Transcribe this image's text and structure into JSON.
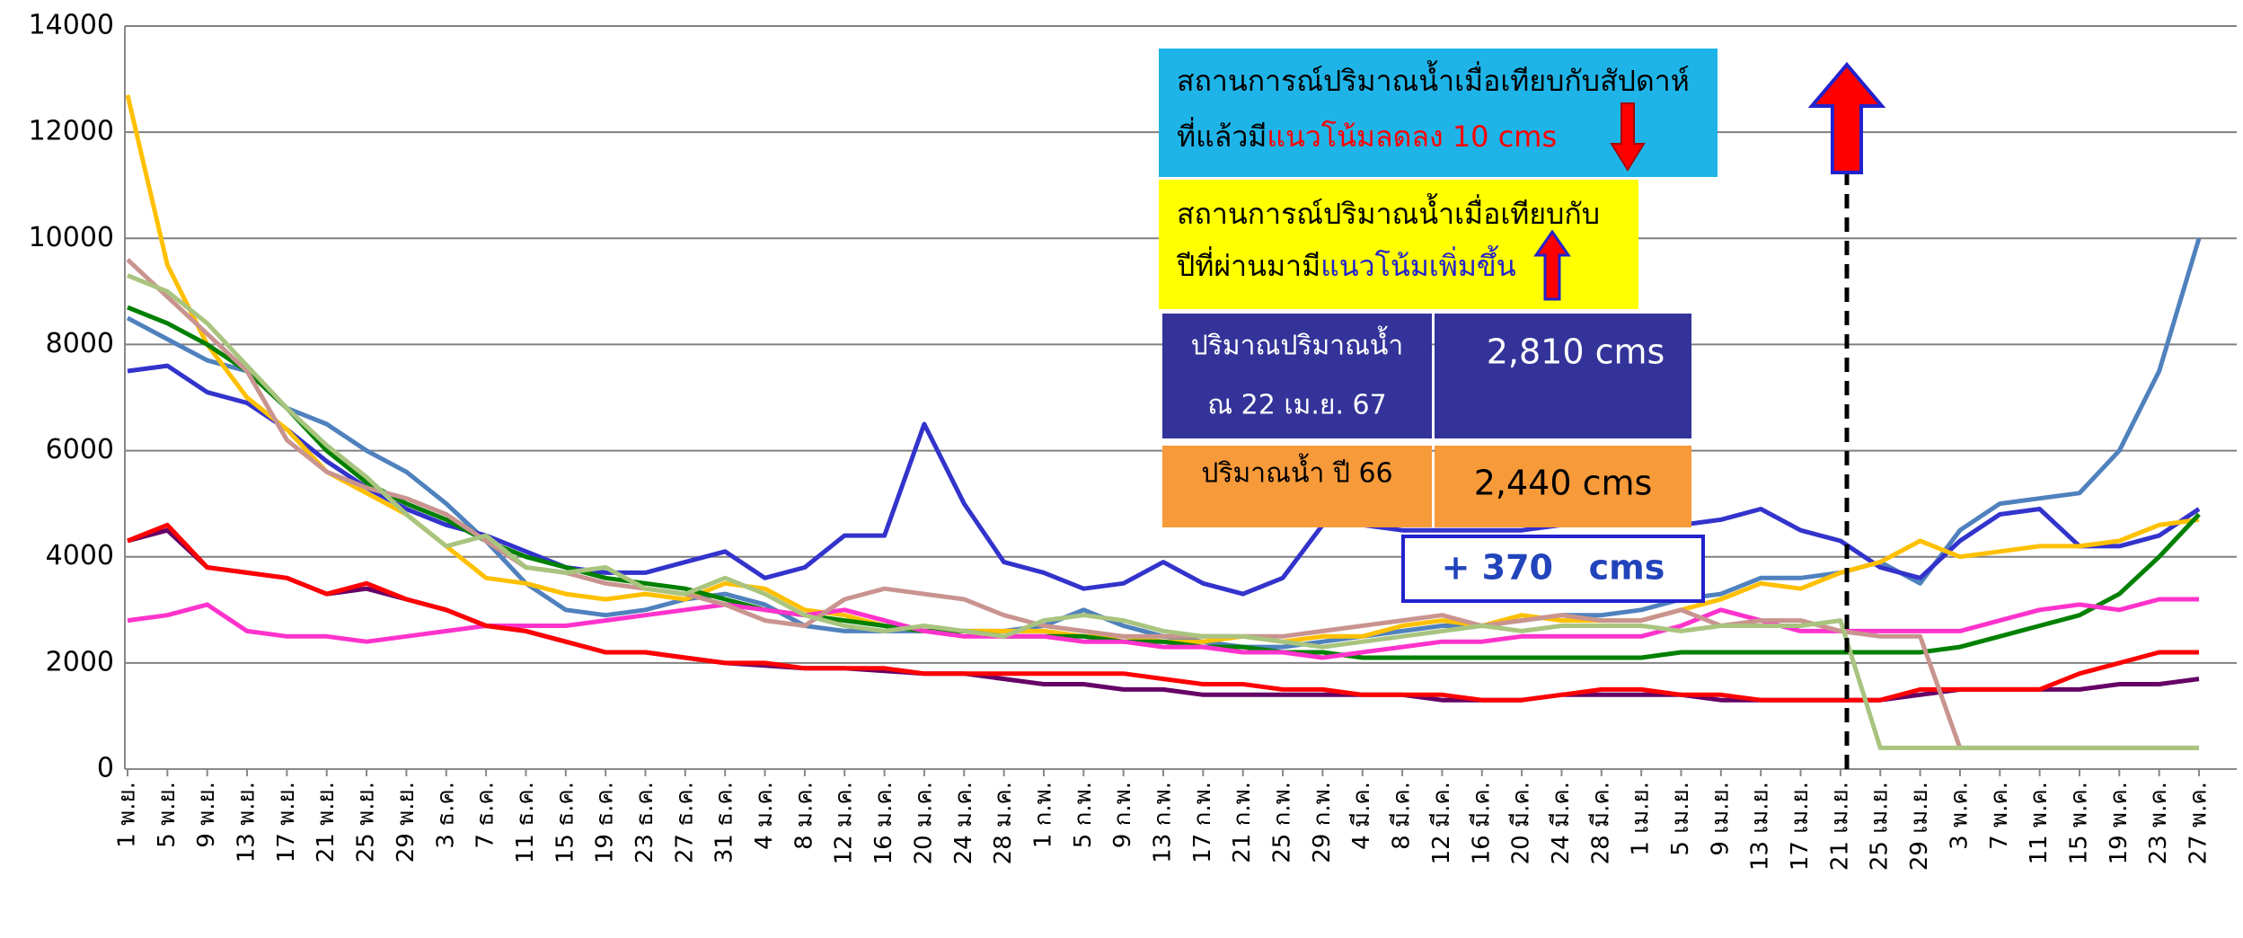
{
  "chart_data": {
    "type": "line",
    "categories": [
      "1 พ.ย.",
      "5 พ.ย.",
      "9 พ.ย.",
      "13 พ.ย.",
      "17 พ.ย.",
      "21 พ.ย.",
      "25 พ.ย.",
      "29 พ.ย.",
      "3 ธ.ค.",
      "7 ธ.ค.",
      "11 ธ.ค.",
      "15 ธ.ค.",
      "19 ธ.ค.",
      "23 ธ.ค.",
      "27 ธ.ค.",
      "31 ธ.ค.",
      "4 ม.ค.",
      "8 ม.ค.",
      "12 ม.ค.",
      "16 ม.ค.",
      "20 ม.ค.",
      "24 ม.ค.",
      "28 ม.ค.",
      "1 ก.พ.",
      "5 ก.พ.",
      "9 ก.พ.",
      "13 ก.พ.",
      "17 ก.พ.",
      "21 ก.พ.",
      "25 ก.พ.",
      "29 ก.พ.",
      "4 มี.ค.",
      "8 มี.ค.",
      "12 มี.ค.",
      "16 มี.ค.",
      "20 มี.ค.",
      "24 มี.ค.",
      "28 มี.ค.",
      "1 เม.ย.",
      "5 เม.ย.",
      "9 เม.ย.",
      "13 เม.ย.",
      "17 เม.ย.",
      "21 เม.ย.",
      "25 เม.ย.",
      "29 เม.ย.",
      "3 พ.ค.",
      "7 พ.ค.",
      "11 พ.ค.",
      "15 พ.ค.",
      "19 พ.ค.",
      "23 พ.ค.",
      "27 พ.ค."
    ],
    "series": [
      {
        "color": "#4f81bd",
        "values": [
          8500,
          8100,
          7700,
          7500,
          6800,
          6500,
          6000,
          5600,
          5000,
          4300,
          3500,
          3000,
          2900,
          3000,
          3200,
          3300,
          3100,
          2700,
          2600,
          2600,
          2600,
          2600,
          2600,
          2700,
          3000,
          2700,
          2500,
          2400,
          2300,
          2300,
          2400,
          2500,
          2600,
          2700,
          2700,
          2800,
          2900,
          2900,
          3000,
          3200,
          3300,
          3600,
          3600,
          3700,
          3900,
          3500,
          4500,
          5000,
          5100,
          5200,
          6000,
          7500,
          10000
        ]
      },
      {
        "color": "#3333cc",
        "values": [
          7500,
          7600,
          7100,
          6900,
          6400,
          5800,
          5300,
          4900,
          4600,
          4400,
          4100,
          3800,
          3700,
          3700,
          3900,
          4100,
          3600,
          3800,
          4400,
          4400,
          6500,
          5000,
          3900,
          3700,
          3400,
          3500,
          3900,
          3500,
          3300,
          3600,
          4600,
          4600,
          4500,
          4500,
          4500,
          4500,
          4600,
          4600,
          4600,
          4600,
          4700,
          4900,
          4500,
          4300,
          3800,
          3600,
          4300,
          4800,
          4900,
          4200,
          4200,
          4400,
          4900
        ]
      },
      {
        "color": "#ffc000",
        "values": [
          12700,
          9500,
          8000,
          7000,
          6400,
          5600,
          5200,
          4800,
          4200,
          3600,
          3500,
          3300,
          3200,
          3300,
          3200,
          3500,
          3400,
          3000,
          2900,
          2700,
          2600,
          2600,
          2600,
          2600,
          2500,
          2500,
          2400,
          2400,
          2500,
          2400,
          2500,
          2500,
          2700,
          2800,
          2700,
          2900,
          2800,
          2800,
          2800,
          3000,
          3200,
          3500,
          3400,
          3700,
          3900,
          4300,
          4000,
          4100,
          4200,
          4200,
          4300,
          4600,
          4700
        ]
      },
      {
        "color": "#008000",
        "values": [
          8700,
          8400,
          8000,
          7500,
          6800,
          6000,
          5400,
          5000,
          4700,
          4300,
          4000,
          3800,
          3600,
          3500,
          3400,
          3200,
          3000,
          2900,
          2800,
          2700,
          2600,
          2600,
          2500,
          2500,
          2500,
          2400,
          2400,
          2300,
          2300,
          2200,
          2200,
          2100,
          2100,
          2100,
          2100,
          2100,
          2100,
          2100,
          2100,
          2200,
          2200,
          2200,
          2200,
          2200,
          2200,
          2200,
          2300,
          2500,
          2700,
          2900,
          3300,
          4000,
          4800
        ]
      },
      {
        "color": "#ff33cc",
        "values": [
          2800,
          2900,
          3100,
          2600,
          2500,
          2500,
          2400,
          2500,
          2600,
          2700,
          2700,
          2700,
          2800,
          2900,
          3000,
          3100,
          3000,
          2900,
          3000,
          2800,
          2600,
          2500,
          2500,
          2500,
          2400,
          2400,
          2300,
          2300,
          2200,
          2200,
          2100,
          2200,
          2300,
          2400,
          2400,
          2500,
          2500,
          2500,
          2500,
          2700,
          3000,
          2800,
          2600,
          2600,
          2600,
          2600,
          2600,
          2800,
          3000,
          3100,
          3000,
          3200,
          3200
        ]
      },
      {
        "color": "#660066",
        "values": [
          4300,
          4500,
          3800,
          3700,
          3600,
          3300,
          3400,
          3200,
          3000,
          2700,
          2600,
          2400,
          2200,
          2200,
          2100,
          2000,
          1950,
          1900,
          1900,
          1850,
          1800,
          1800,
          1700,
          1600,
          1600,
          1500,
          1500,
          1400,
          1400,
          1400,
          1400,
          1400,
          1400,
          1300,
          1300,
          1300,
          1400,
          1400,
          1400,
          1400,
          1300,
          1300,
          1300,
          1300,
          1300,
          1400,
          1500,
          1500,
          1500,
          1500,
          1600,
          1600,
          1700
        ]
      },
      {
        "color": "#ff0000",
        "values": [
          4300,
          4600,
          3800,
          3700,
          3600,
          3300,
          3500,
          3200,
          3000,
          2700,
          2600,
          2400,
          2200,
          2200,
          2100,
          2000,
          2000,
          1900,
          1900,
          1900,
          1800,
          1800,
          1800,
          1800,
          1800,
          1800,
          1700,
          1600,
          1600,
          1500,
          1500,
          1400,
          1400,
          1400,
          1300,
          1300,
          1400,
          1500,
          1500,
          1400,
          1400,
          1300,
          1300,
          1300,
          1300,
          1500,
          1500,
          1500,
          1500,
          1800,
          2000,
          2200,
          2200
        ]
      },
      {
        "color": "#c9948f",
        "values": [
          9600,
          8900,
          8200,
          7500,
          6200,
          5600,
          5300,
          5100,
          4800,
          4300,
          3800,
          3700,
          3500,
          3400,
          3300,
          3100,
          2800,
          2700,
          3200,
          3400,
          3300,
          3200,
          2900,
          2700,
          2600,
          2500,
          2500,
          2500,
          2500,
          2500,
          2600,
          2700,
          2800,
          2900,
          2700,
          2800,
          2900,
          2800,
          2800,
          3000,
          2700,
          2800,
          2800,
          2600,
          2500,
          2500,
          400,
          400,
          400,
          400,
          400,
          400,
          400
        ]
      },
      {
        "color": "#a9c47f",
        "values": [
          9300,
          9000,
          8400,
          7600,
          6800,
          6100,
          5500,
          4800,
          4200,
          4400,
          3800,
          3700,
          3800,
          3400,
          3300,
          3600,
          3300,
          2900,
          2700,
          2600,
          2700,
          2600,
          2500,
          2800,
          2900,
          2800,
          2600,
          2500,
          2500,
          2400,
          2300,
          2400,
          2500,
          2600,
          2700,
          2600,
          2700,
          2700,
          2700,
          2600,
          2700,
          2700,
          2700,
          2800,
          400,
          400,
          400,
          400,
          400,
          400,
          400,
          400,
          400
        ]
      }
    ],
    "ylim": [
      0,
      14000
    ],
    "yticks": [
      0,
      2000,
      4000,
      6000,
      8000,
      10000,
      12000,
      14000
    ],
    "grid": true,
    "annotations": {
      "week_box": {
        "line1": "สถานการณ์ปริมาณน้ำเมื่อเทียบกับสัปดาห์",
        "line2": "ที่แล้วมี",
        "highlight": "แนวโน้มลดลง 10 cms"
      },
      "year_box": {
        "line1": "สถานการณ์ปริมาณน้ำเมื่อเทียบกับ",
        "line2": "ปีที่ผ่านมามี",
        "highlight": "แนวโน้มเพิ่มขึ้น"
      },
      "table": {
        "current_label_1": "ปริมาณปริมาณน้ำ",
        "current_label_2": "ณ 22 เม.ย. 67",
        "current_value": "2,810 cms",
        "last_label": "ปริมาณน้ำ ปี 66",
        "last_value": "2,440 cms"
      },
      "difference": "+ 370   cms"
    }
  }
}
